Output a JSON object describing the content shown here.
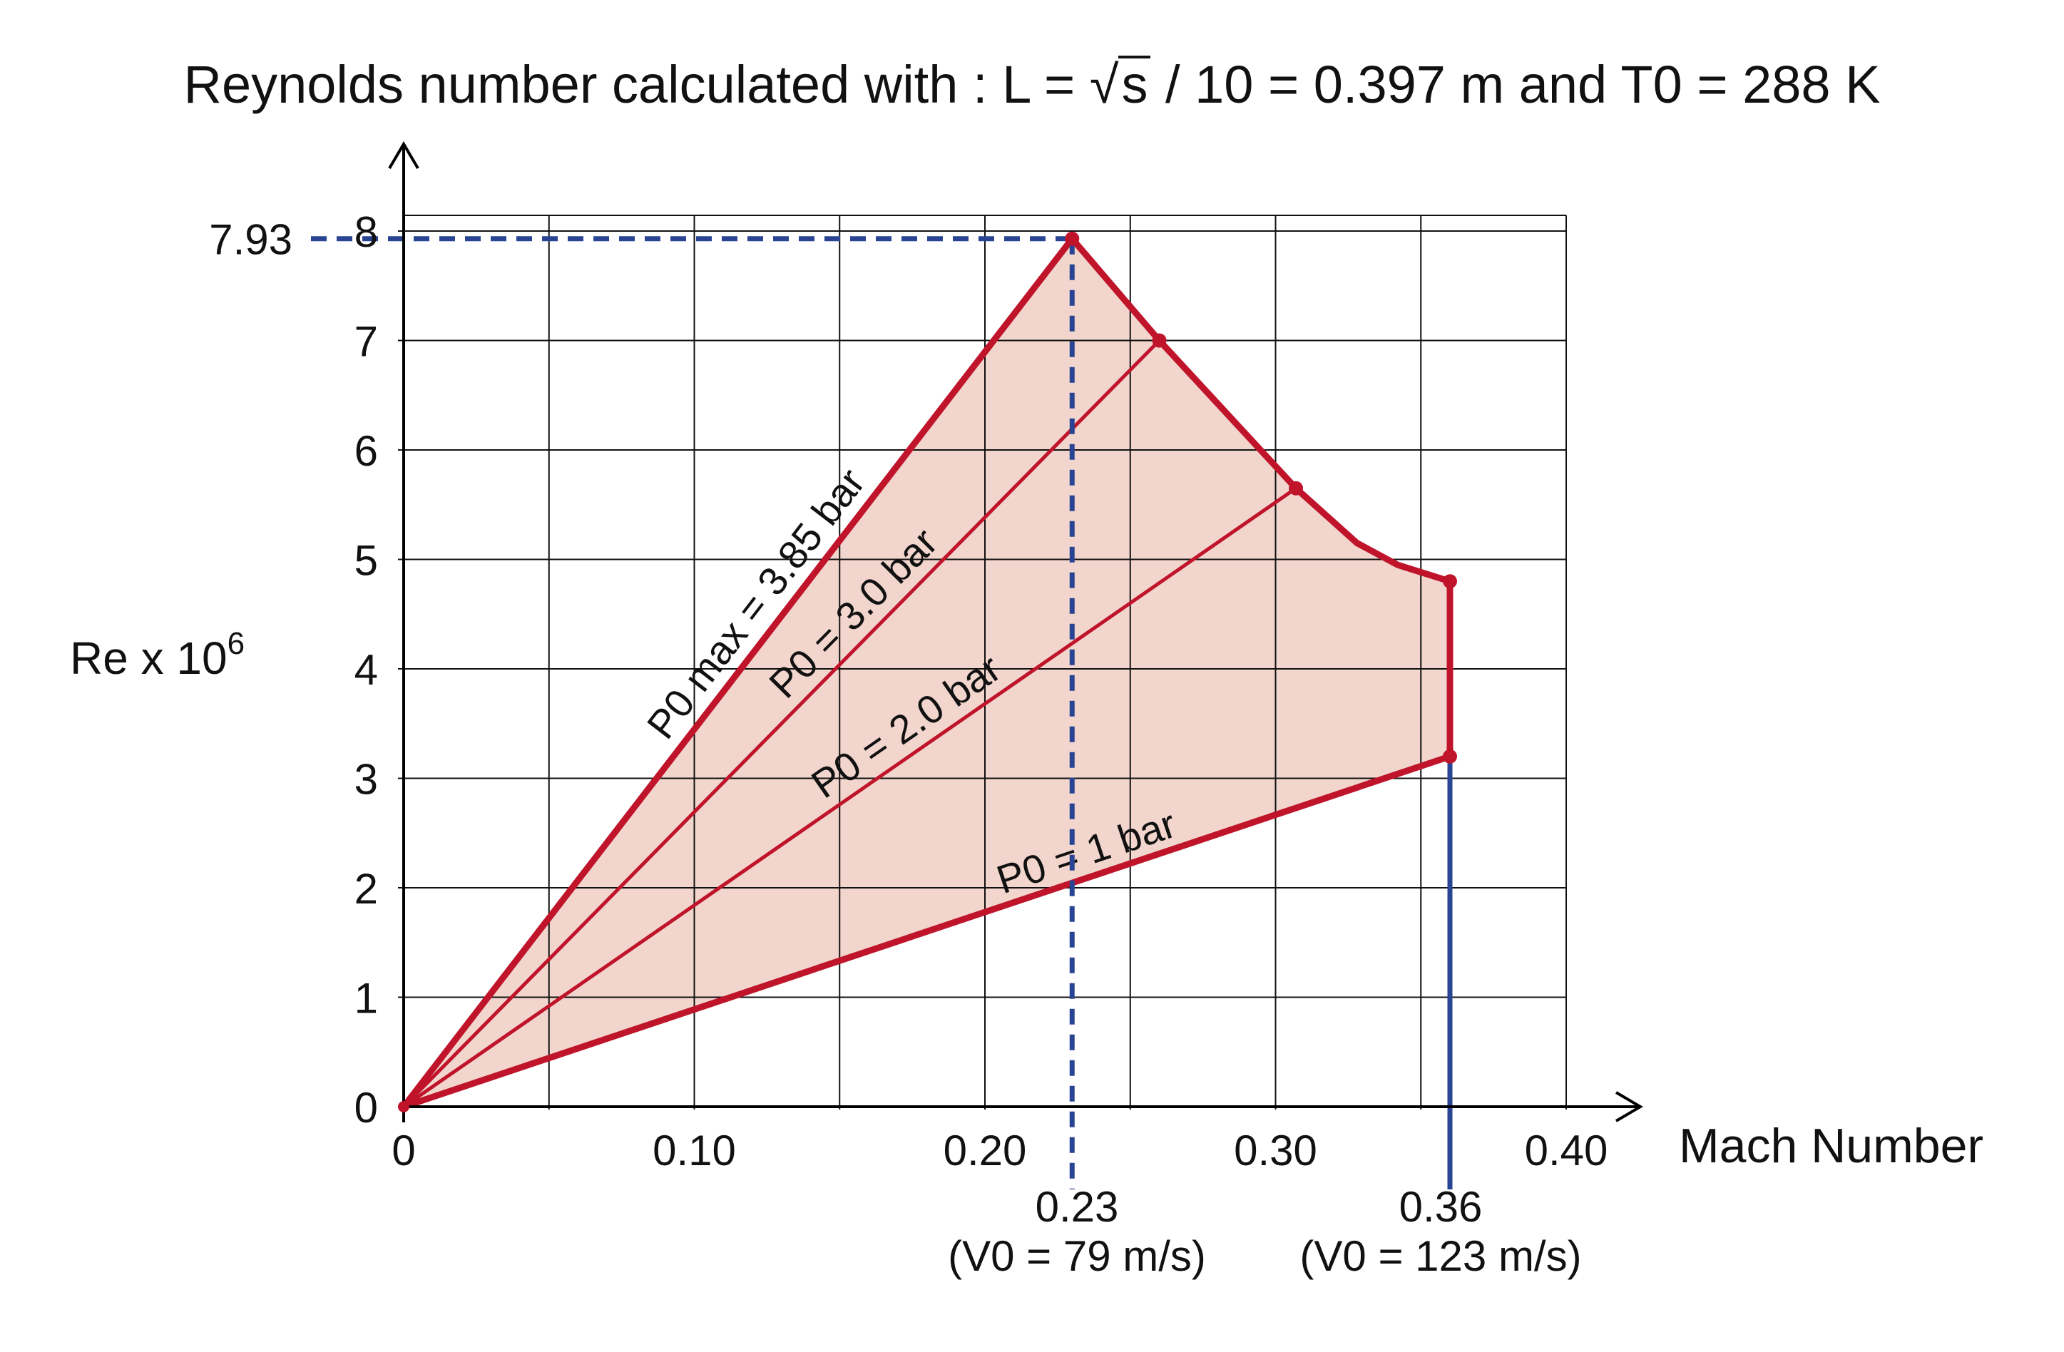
{
  "chart_data": {
    "type": "area",
    "title_prefix": "Reynolds number calculated with : L  = ",
    "title_sqrt": "s",
    "title_suffix": " / 10 = 0.397 m and T0 = 288 K",
    "xlabel": "Mach Number",
    "ylabel_base": "Re x 10",
    "ylabel_exp": "6",
    "xlim": [
      0,
      0.4
    ],
    "ylim": [
      0,
      8
    ],
    "grid": true,
    "x_ticks": [
      0,
      0.05,
      0.1,
      0.15,
      0.2,
      0.25,
      0.3,
      0.35,
      0.4
    ],
    "x_tick_labels": [
      {
        "x": 0,
        "text": "0"
      },
      {
        "x": 0.1,
        "text": "0.10"
      },
      {
        "x": 0.2,
        "text": "0.20"
      },
      {
        "x": 0.3,
        "text": "0.30"
      },
      {
        "x": 0.4,
        "text": "0.40"
      }
    ],
    "y_ticks": [
      0,
      1,
      2,
      3,
      4,
      5,
      6,
      7,
      8
    ],
    "y_tick_labels": [
      "0",
      "1",
      "2",
      "3",
      "4",
      "5",
      "6",
      "7",
      "8"
    ],
    "envelope": [
      [
        0,
        0
      ],
      [
        0.23,
        7.93
      ],
      [
        0.26,
        7.0
      ],
      [
        0.307,
        5.65
      ],
      [
        0.328,
        5.15
      ],
      [
        0.342,
        4.95
      ],
      [
        0.36,
        4.8
      ],
      [
        0.36,
        3.2
      ]
    ],
    "series": [
      {
        "label": "P0 max = 3.85 bar",
        "points": [
          [
            0,
            0
          ],
          [
            0.23,
            7.93
          ]
        ],
        "weight": "heavy"
      },
      {
        "label": "P0 = 3.0 bar",
        "points": [
          [
            0,
            0
          ],
          [
            0.26,
            7.0
          ]
        ],
        "weight": "light"
      },
      {
        "label": "P0 = 2.0 bar",
        "points": [
          [
            0,
            0
          ],
          [
            0.307,
            5.65
          ]
        ],
        "weight": "light"
      },
      {
        "label": "P0 = 1 bar",
        "points": [
          [
            0,
            0
          ],
          [
            0.36,
            3.2
          ]
        ],
        "weight": "heavy"
      }
    ],
    "vertex_markers": [
      [
        0.23,
        7.93
      ],
      [
        0.26,
        7.0
      ],
      [
        0.307,
        5.65
      ],
      [
        0.36,
        4.8
      ],
      [
        0.36,
        3.2
      ]
    ],
    "reference_lines": {
      "max_re": {
        "value": 7.93,
        "label": "7.93",
        "at_mach": 0.23
      },
      "mach_023": {
        "value": 0.23,
        "label": "0.23",
        "sublabel": "(V0 = 79 m/s)"
      },
      "mach_036": {
        "value": 0.36,
        "label": "0.36",
        "sublabel": "(V0 = 123 m/s)"
      }
    },
    "colors": {
      "envelope_line": "#c0142b",
      "envelope_fill": "#f2d6cd",
      "reference": "#2a4494",
      "grid": "#111111",
      "axis": "#000000"
    }
  }
}
